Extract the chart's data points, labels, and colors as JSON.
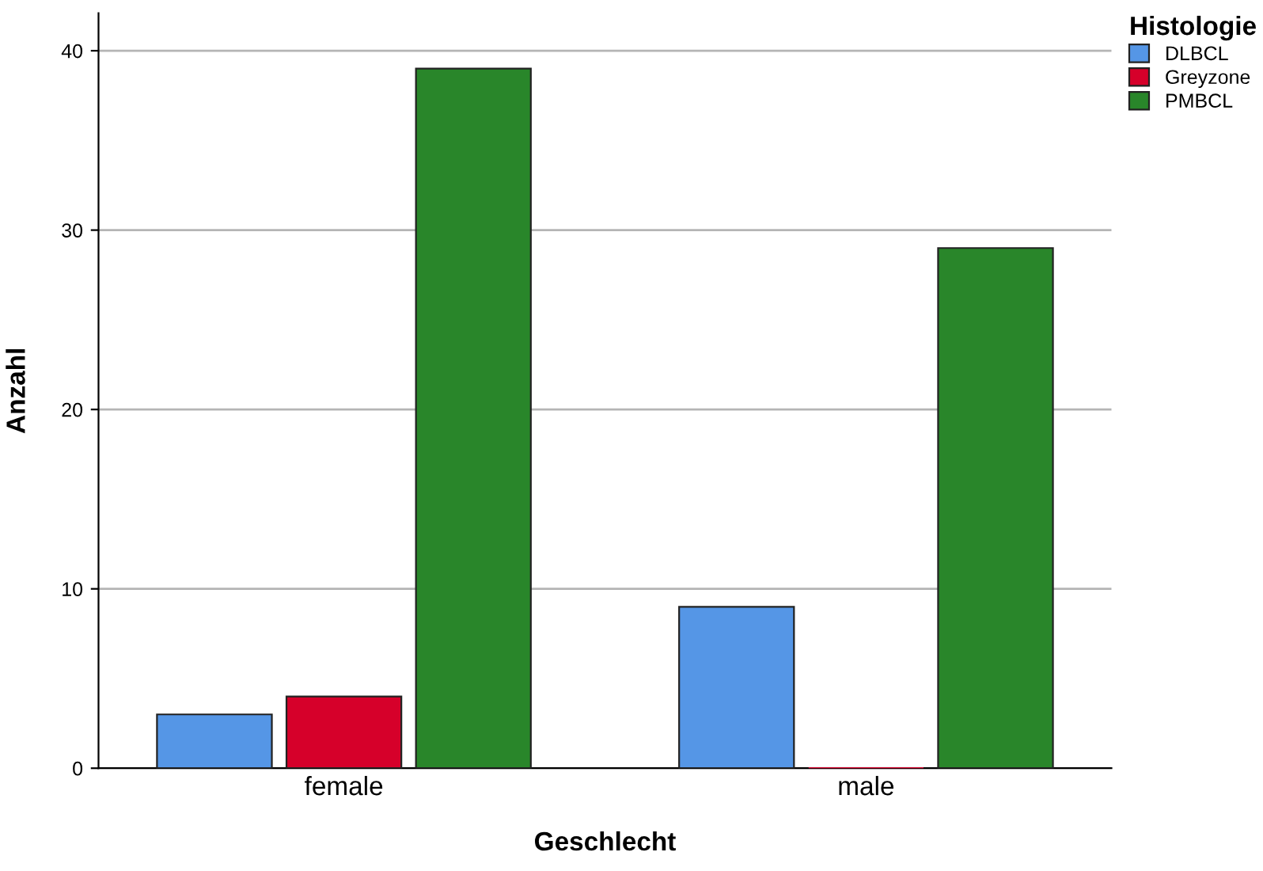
{
  "chart_data": {
    "type": "bar",
    "xlabel": "Geschlecht",
    "ylabel": "Anzahl",
    "legend_title": "Histologie",
    "categories": [
      "female",
      "male"
    ],
    "series": [
      {
        "name": "DLBCL",
        "color": "#5596e6",
        "values": [
          3,
          9
        ]
      },
      {
        "name": "Greyzone",
        "color": "#d6002a",
        "values": [
          4,
          0
        ]
      },
      {
        "name": "PMBCL",
        "color": "#29862a",
        "values": [
          39,
          29
        ]
      }
    ],
    "ylim": [
      0,
      42.1
    ],
    "yticks": [
      0,
      10,
      20,
      30,
      40
    ],
    "grid": "y",
    "legend": "top right"
  }
}
